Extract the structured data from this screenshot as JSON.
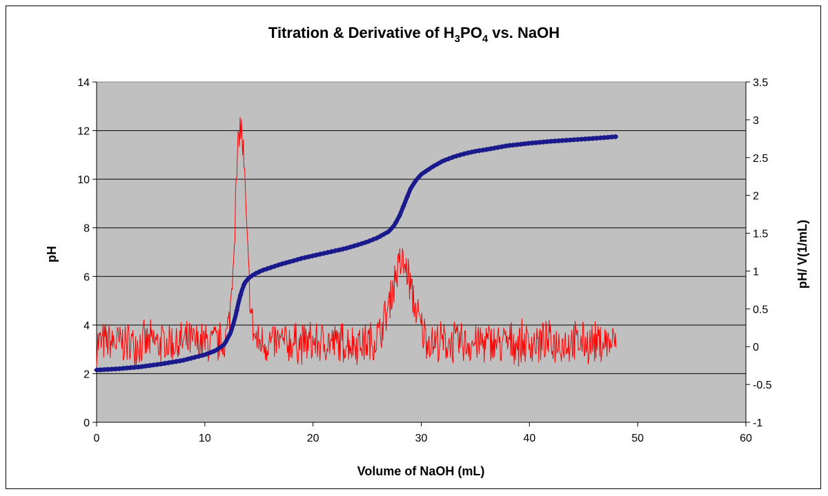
{
  "chart_data": {
    "type": "line",
    "title": {
      "prefix": "Titration & Derivative of H",
      "sub1": "3",
      "mid": "PO",
      "sub2": "4",
      "suffix": " vs. NaOH"
    },
    "xlabel": "Volume of NaOH (mL)",
    "ylabel": "pH",
    "y2label": "pH/ V(1/mL)",
    "xlim": [
      0,
      60
    ],
    "ylim": [
      0,
      14
    ],
    "y2lim": [
      -1,
      3.5
    ],
    "x_ticks": [
      0,
      10,
      20,
      30,
      40,
      50,
      60
    ],
    "y_ticks": [
      0,
      2,
      4,
      6,
      8,
      10,
      12,
      14
    ],
    "y2_ticks": [
      -1,
      -0.5,
      0,
      0.5,
      1,
      1.5,
      2,
      2.5,
      3,
      3.5
    ],
    "grid": "horizontal",
    "colors": {
      "plot_background": "#c0c0c0",
      "ph_series": "#1a1a8c",
      "derivative_series": "#ff0000"
    },
    "series": [
      {
        "axis": "left",
        "marker": "diamond",
        "x": [
          0,
          2,
          4,
          6,
          8,
          10,
          11,
          11.8,
          12.4,
          12.8,
          13.1,
          13.4,
          13.7,
          14.1,
          14.6,
          15.3,
          16,
          17,
          18,
          19,
          20,
          21,
          22,
          23,
          24,
          25,
          26,
          27,
          27.5,
          28,
          28.5,
          29,
          29.5,
          30,
          31,
          32,
          33,
          34,
          35,
          36,
          37,
          38,
          40,
          42,
          44,
          46,
          48
        ],
        "y": [
          2.15,
          2.2,
          2.28,
          2.4,
          2.55,
          2.78,
          2.95,
          3.2,
          3.7,
          4.3,
          4.9,
          5.4,
          5.75,
          5.95,
          6.1,
          6.25,
          6.35,
          6.5,
          6.62,
          6.75,
          6.85,
          6.95,
          7.05,
          7.15,
          7.28,
          7.42,
          7.6,
          7.85,
          8.1,
          8.5,
          9.05,
          9.6,
          9.95,
          10.2,
          10.5,
          10.75,
          10.92,
          11.05,
          11.15,
          11.22,
          11.3,
          11.38,
          11.48,
          11.56,
          11.62,
          11.68,
          11.75
        ]
      },
      {
        "axis": "right",
        "x_range": [
          0,
          48
        ],
        "peaks": [
          {
            "x": 13.3,
            "y": 2.9,
            "width": 0.7
          },
          {
            "x": 28.2,
            "y": 1.1,
            "width": 1.4
          }
        ],
        "baseline": 0.05,
        "noise_amplitude": 0.32
      }
    ]
  }
}
